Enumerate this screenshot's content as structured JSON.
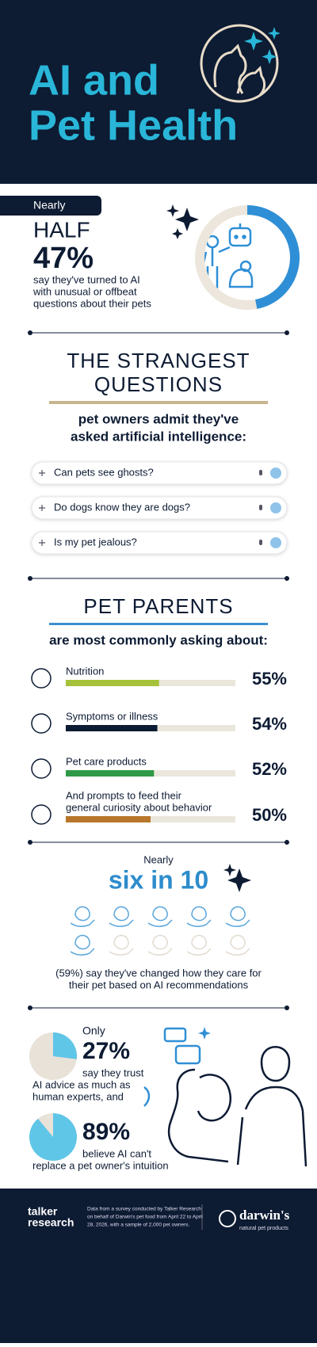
{
  "header": {
    "title": [
      "AI and",
      "Pet Health"
    ]
  },
  "half": {
    "kicker": "Nearly",
    "headline": "HALF",
    "value": 47,
    "value_label": "47%",
    "color": "#2f8fd6",
    "text": [
      "say they've turned to AI",
      "with unusual or offbeat",
      "questions about their pets"
    ]
  },
  "questions": {
    "title": [
      "THE STRANGEST",
      "QUESTIONS"
    ],
    "subtitle": [
      "pet owners admit they've",
      "asked artificial intelligence:"
    ],
    "items": [
      "Can pets see ghosts?",
      "Do dogs know they are dogs?",
      "Is my pet jealous?"
    ]
  },
  "topics": {
    "title": "PET PARENTS",
    "subtitle": "are most commonly asking about:",
    "items": [
      {
        "label": [
          "Nutrition"
        ],
        "value": 55,
        "value_label": "55%",
        "color": "#a6c23a"
      },
      {
        "label": [
          "Symptoms or illness"
        ],
        "value": 54,
        "value_label": "54%",
        "color": "#0d1b33"
      },
      {
        "label": [
          "Pet care products"
        ],
        "value": 52,
        "value_label": "52%",
        "color": "#2e9a47"
      },
      {
        "label": [
          "And prompts to feed their",
          "general curiosity about behavior"
        ],
        "value": 50,
        "value_label": "50%",
        "color": "#b8762c"
      }
    ]
  },
  "six": {
    "kicker": "Nearly",
    "headline": "six in 10",
    "text": [
      "(59%) say they've changed how they care for",
      "their pet based on AI recommendations"
    ]
  },
  "trust": {
    "kicker": "Only",
    "color": "#5fc6e8",
    "items": [
      {
        "value": 27,
        "value_label": "27%",
        "text": [
          "say they trust",
          "AI advice as much as",
          "human experts, and"
        ]
      },
      {
        "value": 89,
        "value_label": "89%",
        "text": [
          "believe AI can't",
          "replace a pet owner's intuition"
        ]
      }
    ]
  },
  "footer": {
    "brand": [
      "talker",
      "research"
    ],
    "note": [
      "Data from a survey conducted by Talker Research",
      "on behalf of Darwin's pet food from April 22 to April",
      "28, 2026, with a sample of 2,000 pet owners."
    ],
    "partner": "darwin's",
    "partner_tagline": "natural pet products"
  }
}
